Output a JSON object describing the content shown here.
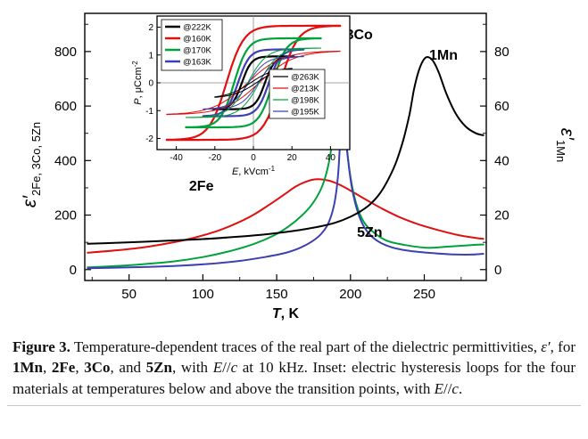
{
  "chart_data": {
    "type": "line",
    "title": "",
    "xlabel": {
      "symbol": "T",
      "rest": ", K"
    },
    "xlim": [
      20,
      292
    ],
    "x_ticks": [
      50,
      100,
      150,
      200,
      250
    ],
    "grid": false,
    "left_axis": {
      "symbol": "ε′",
      "subscript": "2Fe, 3Co, 5Zn",
      "ticks": [
        0,
        200,
        400,
        600,
        800
      ],
      "lim": [
        -40,
        940
      ]
    },
    "right_axis": {
      "symbol": "ε′",
      "subscript": "1Mn",
      "ticks": [
        0,
        20,
        40,
        60,
        80
      ],
      "lim": [
        -4,
        94
      ]
    },
    "series": [
      {
        "name": "2Fe",
        "axis": "left",
        "color": "#e01010",
        "x": [
          22,
          40,
          60,
          80,
          95,
          110,
          122,
          134,
          145,
          155,
          163,
          170,
          176,
          182,
          188,
          195,
          203,
          212,
          222,
          233,
          245,
          258,
          272,
          285,
          290
        ],
        "y": [
          62,
          70,
          82,
          100,
          118,
          142,
          168,
          200,
          238,
          275,
          305,
          323,
          331,
          330,
          322,
          305,
          280,
          252,
          222,
          193,
          168,
          147,
          128,
          116,
          113
        ]
      },
      {
        "name": "3Co",
        "axis": "left",
        "color": "#00a23c",
        "x": [
          22,
          50,
          80,
          100,
          120,
          135,
          148,
          158,
          167,
          174,
          180,
          184,
          187,
          189,
          190.5,
          192,
          193.5,
          195,
          197,
          200,
          204,
          209,
          216,
          225,
          237,
          252,
          268,
          282,
          290
        ],
        "y": [
          8,
          16,
          30,
          46,
          70,
          95,
          125,
          158,
          198,
          240,
          295,
          360,
          445,
          560,
          700,
          865,
          780,
          640,
          480,
          340,
          240,
          175,
          135,
          105,
          90,
          80,
          85,
          90,
          92
        ]
      },
      {
        "name": "5Zn",
        "axis": "left",
        "color": "#3c40b0",
        "x": [
          22,
          50,
          80,
          105,
          125,
          142,
          155,
          165,
          173,
          180,
          185,
          189,
          191.5,
          193,
          194.5,
          196,
          198,
          201,
          205,
          210,
          217,
          226,
          238,
          252,
          268,
          282,
          290
        ],
        "y": [
          5,
          8,
          13,
          21,
          32,
          46,
          60,
          78,
          100,
          130,
          170,
          240,
          340,
          470,
          610,
          540,
          420,
          300,
          210,
          150,
          110,
          85,
          70,
          62,
          56,
          55,
          58
        ]
      },
      {
        "name": "1Mn",
        "axis": "right",
        "color": "#000000",
        "x": [
          22,
          40,
          60,
          80,
          100,
          120,
          140,
          155,
          170,
          185,
          195,
          205,
          213,
          220,
          226,
          231,
          236,
          240,
          243,
          246,
          249,
          252,
          256,
          260,
          265,
          271,
          278,
          285,
          290
        ],
        "y": [
          9.5,
          9.8,
          10.2,
          10.7,
          11.2,
          11.9,
          12.8,
          13.7,
          14.9,
          16.5,
          18.2,
          20.8,
          23.8,
          28,
          33.5,
          39.5,
          48,
          57,
          66,
          72.5,
          76.5,
          78,
          76.5,
          72,
          64.5,
          57.5,
          52.5,
          50,
          49.3
        ]
      }
    ],
    "series_labels": [
      {
        "text": "2Fe",
        "color": "#e01010",
        "axis": "left",
        "T": 99,
        "val": 290
      },
      {
        "text": "3Co",
        "color": "#00a23c",
        "axis": "left",
        "T": 206,
        "val": 845
      },
      {
        "text": "5Zn",
        "color": "#3c40b0",
        "axis": "left",
        "T": 213,
        "val": 120
      },
      {
        "text": "1Mn",
        "color": "#000000",
        "axis": "right",
        "T": 263,
        "val": 77
      }
    ],
    "inset": {
      "type": "hysteresis-loops",
      "xlabel": {
        "symbol": "E",
        "rest": ", kVcm",
        "sup": "-1"
      },
      "ylabel": {
        "symbol": "P",
        "rest": ", μCcm",
        "sup": "-2"
      },
      "xlim": [
        -50,
        50
      ],
      "ylim": [
        -2.4,
        2.4
      ],
      "x_ticks": [
        -40,
        -20,
        0,
        20,
        40
      ],
      "y_ticks": [
        -2,
        -1,
        0,
        1,
        2
      ],
      "legend_below": [
        {
          "label": "@222K",
          "color": "#000000"
        },
        {
          "label": "@160K",
          "color": "#e01010"
        },
        {
          "label": "@170K",
          "color": "#00a23c"
        },
        {
          "label": "@163K",
          "color": "#3c40b0"
        }
      ],
      "legend_above": [
        {
          "label": "@263K",
          "color": "#000000"
        },
        {
          "label": "@213K",
          "color": "#e01010"
        },
        {
          "label": "@198K",
          "color": "#00a23c"
        },
        {
          "label": "@195K",
          "color": "#3c40b0"
        }
      ],
      "loops_below": [
        {
          "name": "@160K",
          "color": "#e01010",
          "emax": 45,
          "psat": 2.05,
          "ec": 14,
          "w": 9
        },
        {
          "name": "@170K",
          "color": "#00a23c",
          "emax": 35,
          "psat": 1.6,
          "ec": 10,
          "w": 7
        },
        {
          "name": "@163K",
          "color": "#3c40b0",
          "emax": 26,
          "psat": 1.2,
          "ec": 8,
          "w": 6
        },
        {
          "name": "@222K",
          "color": "#000000",
          "emax": 21,
          "psat": 0.95,
          "ec": 6,
          "w": 5
        }
      ],
      "loops_above": [
        {
          "name": "@213K",
          "color": "#e01010",
          "emax": 45,
          "psat": 1.15,
          "ec": 3,
          "w": 18
        },
        {
          "name": "@198K",
          "color": "#00a23c",
          "emax": 35,
          "psat": 1.25,
          "ec": 3,
          "w": 10
        },
        {
          "name": "@195K",
          "color": "#3c40b0",
          "emax": 26,
          "psat": 0.95,
          "ec": 2.5,
          "w": 9
        },
        {
          "name": "@263K",
          "color": "#000000",
          "emax": 20,
          "psat": 0.55,
          "ec": 1.5,
          "w": 12
        }
      ]
    }
  },
  "caption": {
    "segments": [
      {
        "text": "Figure 3.",
        "bold": true
      },
      {
        "text": " Temperature-dependent traces of the real part of the dielectric permittivities, "
      },
      {
        "text": "ε′",
        "italic": true
      },
      {
        "text": ", for "
      },
      {
        "text": "1Mn",
        "bold": true
      },
      {
        "text": ", "
      },
      {
        "text": "2Fe",
        "bold": true
      },
      {
        "text": ", "
      },
      {
        "text": "3Co",
        "bold": true
      },
      {
        "text": ", and "
      },
      {
        "text": "5Zn",
        "bold": true
      },
      {
        "text": ", with "
      },
      {
        "text": "E",
        "italic": true
      },
      {
        "text": "//"
      },
      {
        "text": "c",
        "italic": true
      },
      {
        "text": " at 10 kHz. Inset: electric hysteresis loops for the four materials at temperatures below and above the transition points, with "
      },
      {
        "text": "E",
        "italic": true
      },
      {
        "text": "//"
      },
      {
        "text": "c",
        "italic": true
      },
      {
        "text": "."
      }
    ]
  }
}
